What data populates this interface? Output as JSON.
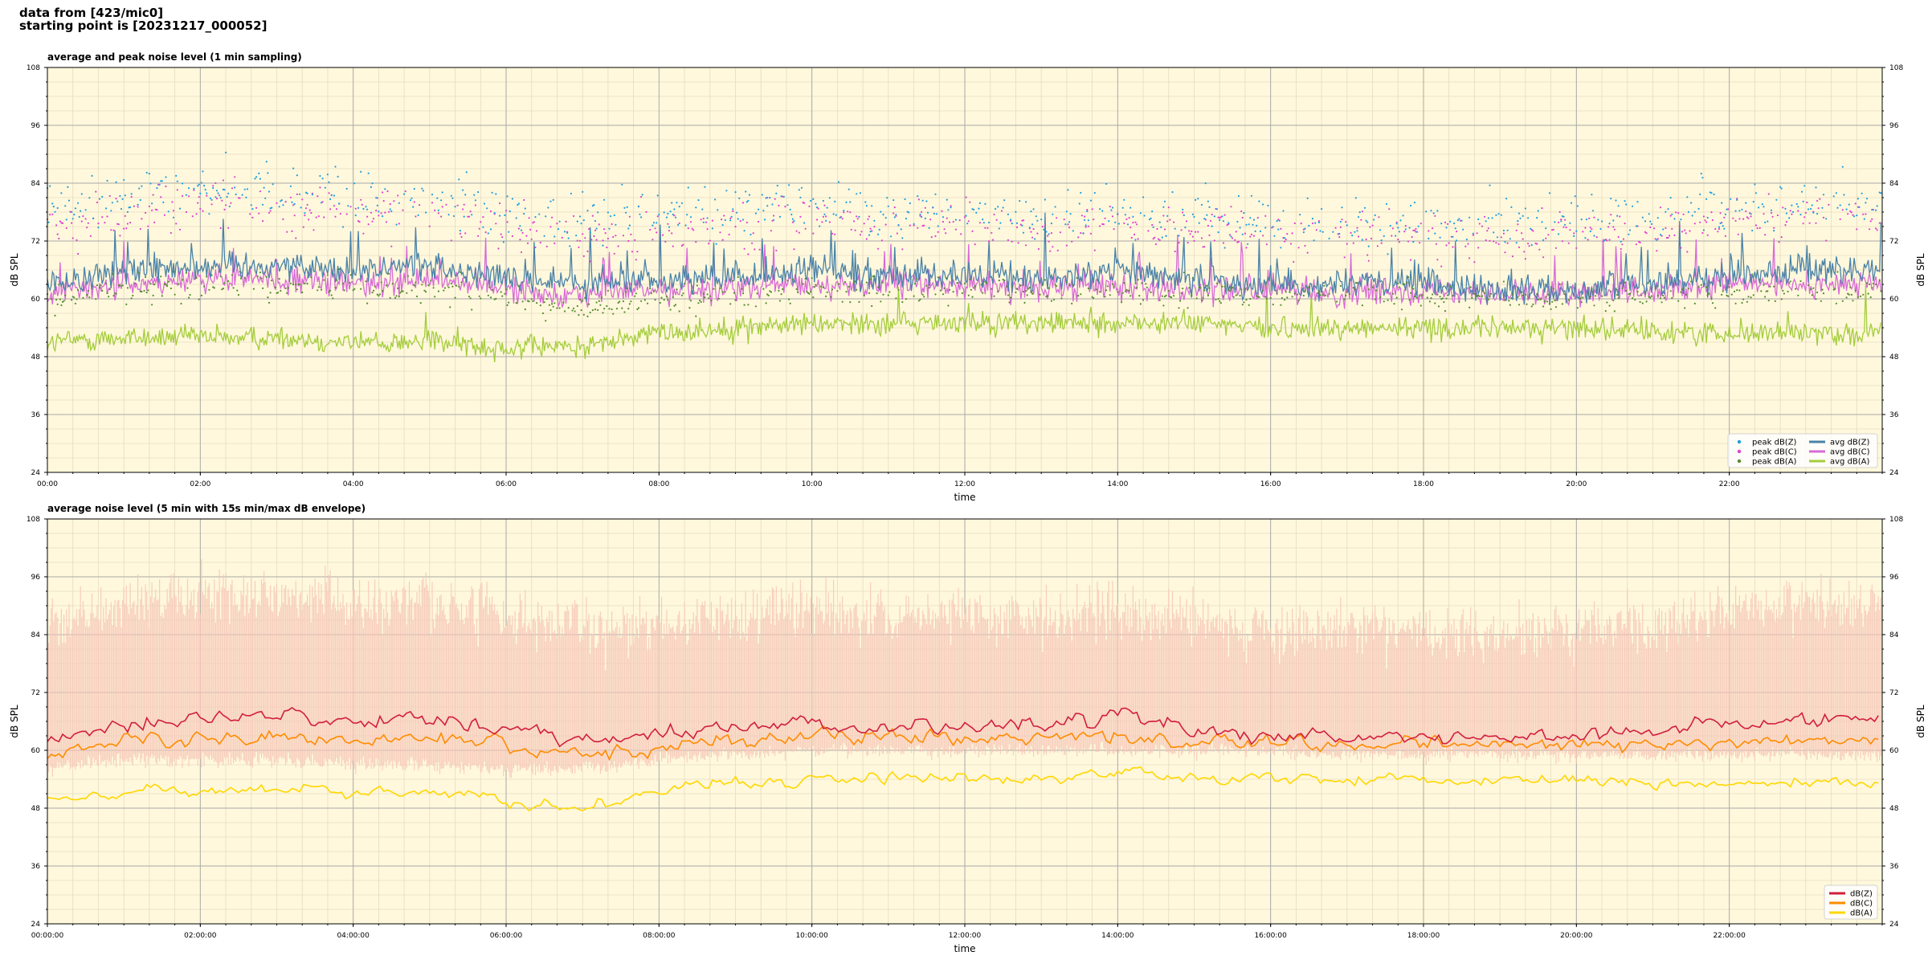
{
  "header": {
    "line1": "data from [423/mic0]",
    "line2": "starting point is [20231217_000052]"
  },
  "colors": {
    "plot_bg": "#fff8dc",
    "grid_major": "#a9a9a9",
    "grid_minor": "#e6dcc0",
    "peak_z": "#1f9ee0",
    "peak_c": "#e040d0",
    "peak_a": "#558b2f",
    "avg_z": "#4a82a8",
    "avg_c": "#d86ad8",
    "avg_a": "#a4cd3c",
    "z5": "#d21f3c",
    "c5": "#ff8c00",
    "a5": "#ffd700",
    "envelope": "#f6c6b8"
  },
  "chart_data": [
    {
      "type": "line",
      "title": "average and peak noise level (1 min sampling)",
      "xlabel": "time",
      "ylabel": "dB SPL",
      "ylim": [
        24,
        108
      ],
      "xlim_minutes": [
        0,
        1440
      ],
      "yticks": [
        "24",
        "36",
        "48",
        "60",
        "72",
        "84",
        "96",
        "108"
      ],
      "xtick_labels": [
        "00:00",
        "02:00",
        "04:00",
        "06:00",
        "08:00",
        "10:00",
        "12:00",
        "14:00",
        "16:00",
        "18:00",
        "20:00",
        "22:00"
      ],
      "grid": true,
      "legend_position": "lower-right",
      "legend": [
        "peak dB(Z)",
        "peak dB(C)",
        "peak dB(A)",
        "avg dB(Z)",
        "avg dB(C)",
        "avg dB(A)"
      ],
      "series_hourly_approx": {
        "x_hours": [
          0,
          1,
          2,
          3,
          4,
          5,
          6,
          7,
          8,
          9,
          10,
          11,
          12,
          13,
          14,
          15,
          16,
          17,
          18,
          19,
          20,
          21,
          22,
          23
        ],
        "avg_dBZ": [
          63,
          66,
          67,
          67,
          66,
          67,
          64,
          63,
          64,
          64,
          66,
          65,
          65,
          64,
          66,
          64,
          63,
          63,
          63,
          62,
          62,
          63,
          65,
          66
        ],
        "avg_dBC": [
          61,
          63,
          64,
          64,
          63,
          64,
          62,
          61,
          62,
          62,
          63,
          63,
          63,
          62,
          63,
          62,
          62,
          61,
          62,
          61,
          61,
          61,
          63,
          63
        ],
        "avg_dBA": [
          51,
          52,
          52,
          52,
          51,
          51,
          50,
          50,
          53,
          54,
          55,
          55,
          55,
          55,
          55,
          55,
          54,
          54,
          54,
          54,
          54,
          53,
          53,
          53
        ],
        "peak_dBZ": [
          78,
          81,
          83,
          82,
          81,
          81,
          78,
          76,
          77,
          78,
          79,
          78,
          78,
          77,
          79,
          77,
          76,
          76,
          76,
          75,
          76,
          77,
          79,
          80
        ],
        "peak_dBC": [
          75,
          78,
          80,
          79,
          78,
          78,
          75,
          73,
          74,
          75,
          76,
          75,
          75,
          74,
          76,
          74,
          73,
          73,
          73,
          72,
          73,
          74,
          76,
          77
        ],
        "peak_dBA": [
          60,
          62,
          63,
          63,
          62,
          62,
          60,
          58,
          60,
          61,
          62,
          62,
          62,
          61,
          62,
          61,
          61,
          61,
          61,
          60,
          60,
          61,
          61,
          62
        ]
      }
    },
    {
      "type": "line",
      "title": "average noise level (5 min with 15s min/max dB envelope)",
      "xlabel": "time",
      "ylabel": "dB SPL",
      "ylim": [
        24,
        108
      ],
      "xlim_minutes": [
        0,
        1440
      ],
      "yticks": [
        "24",
        "36",
        "48",
        "60",
        "72",
        "84",
        "96",
        "108"
      ],
      "xtick_labels": [
        "00:00:00",
        "02:00:00",
        "04:00:00",
        "06:00:00",
        "08:00:00",
        "10:00:00",
        "12:00:00",
        "14:00:00",
        "16:00:00",
        "18:00:00",
        "20:00:00",
        "22:00:00"
      ],
      "grid": true,
      "legend_position": "lower-right",
      "legend": [
        "dB(Z)",
        "dB(C)",
        "dB(A)"
      ],
      "series_hourly_approx": {
        "x_hours": [
          0,
          1,
          2,
          3,
          4,
          5,
          6,
          7,
          8,
          9,
          10,
          11,
          12,
          13,
          14,
          15,
          16,
          17,
          18,
          19,
          20,
          21,
          22,
          23
        ],
        "dBZ": [
          61,
          65,
          67,
          68,
          66,
          67,
          64,
          62,
          64,
          65,
          66,
          65,
          65,
          65,
          67,
          64,
          63,
          63,
          63,
          62,
          63,
          64,
          66,
          66
        ],
        "dBC": [
          59,
          62,
          63,
          63,
          62,
          63,
          61,
          59,
          61,
          62,
          63,
          63,
          62,
          62,
          63,
          62,
          62,
          61,
          61,
          61,
          61,
          61,
          62,
          62
        ],
        "dBA": [
          50,
          51,
          52,
          52,
          51,
          51,
          50,
          48,
          52,
          53,
          54,
          54,
          54,
          54,
          55,
          54,
          54,
          54,
          54,
          54,
          54,
          53,
          53,
          53
        ],
        "envelope_max": [
          85,
          90,
          92,
          92,
          91,
          91,
          88,
          85,
          87,
          88,
          89,
          88,
          88,
          87,
          89,
          87,
          85,
          85,
          85,
          84,
          85,
          86,
          89,
          90
        ],
        "envelope_min": [
          56,
          58,
          58,
          58,
          57,
          57,
          56,
          56,
          58,
          59,
          60,
          60,
          60,
          60,
          60,
          60,
          60,
          59,
          59,
          59,
          59,
          59,
          59,
          59
        ]
      }
    }
  ]
}
